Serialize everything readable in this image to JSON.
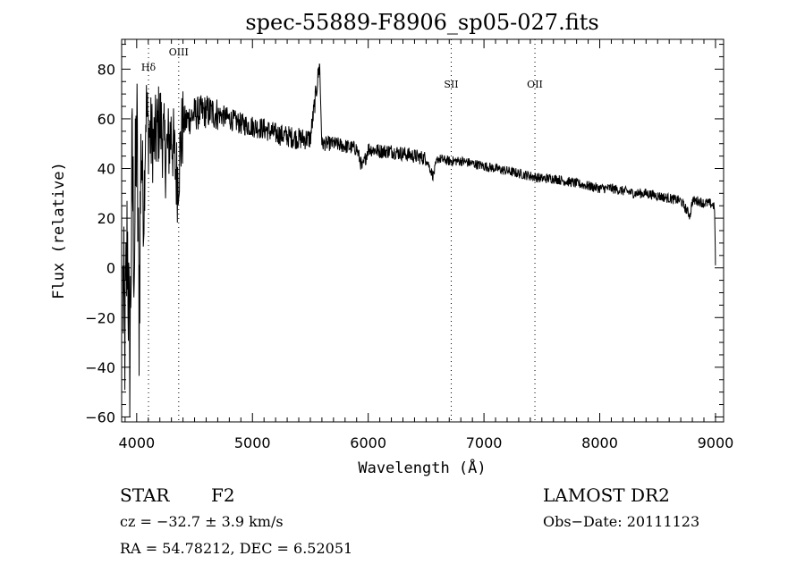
{
  "chart_data": {
    "type": "line",
    "title": "spec-55889-F8906_sp05-027.fits",
    "xlabel": "Wavelength (Å)",
    "ylabel": "Flux (relative)",
    "xlim": [
      3870,
      9070
    ],
    "ylim": [
      -62,
      92
    ],
    "xticks": [
      4000,
      5000,
      6000,
      7000,
      8000,
      9000
    ],
    "yticks": [
      -60,
      -40,
      -20,
      0,
      20,
      40,
      60,
      80
    ],
    "line_marks": [
      {
        "name": "Hδ",
        "x": 4102
      },
      {
        "name": "OIII",
        "x": 4363
      },
      {
        "name": "SII",
        "x": 6717
      },
      {
        "name": "OII",
        "x": 7440
      }
    ],
    "series": [
      {
        "x": [
          3880,
          3900,
          3920,
          3940,
          3960,
          3980,
          4000,
          4020,
          4040,
          4060,
          4080,
          4100,
          4150,
          4200,
          4250,
          4300,
          4350,
          4400,
          4500,
          4600,
          4700,
          4800,
          4900,
          5000,
          5100,
          5200,
          5300,
          5400,
          5500,
          5580,
          5600,
          5700,
          5800,
          5900,
          5950,
          6000,
          6100,
          6200,
          6300,
          6400,
          6500,
          6560,
          6600,
          6700,
          6800,
          6900,
          7000,
          7100,
          7200,
          7300,
          7400,
          7500,
          7600,
          7700,
          7800,
          7900,
          8000,
          8100,
          8200,
          8300,
          8400,
          8500,
          8600,
          8700,
          8780,
          8800,
          8850,
          8900,
          8950,
          8990,
          9000
        ],
        "y": [
          -10,
          -28,
          15,
          -45,
          40,
          5,
          60,
          -20,
          55,
          20,
          65,
          55,
          50,
          60,
          45,
          55,
          35,
          58,
          62,
          63,
          62,
          60,
          58,
          57,
          56,
          54,
          53,
          52,
          52,
          82,
          50,
          50,
          49,
          48,
          40,
          48,
          47,
          47,
          46,
          45,
          44,
          37,
          44,
          43,
          43,
          42,
          41,
          40,
          39,
          38,
          37,
          36,
          36,
          35,
          34,
          33,
          32,
          32,
          31,
          30,
          30,
          29,
          28,
          27,
          21,
          27,
          27,
          26,
          26,
          25,
          5
        ]
      }
    ]
  },
  "footer": {
    "object_class": "STAR",
    "subclass": "F2",
    "survey": "LAMOST DR2",
    "cz": "cz = −32.7 ± 3.9 km/s",
    "obs_date": "Obs−Date: 20111123",
    "coords": "RA =  54.78212, DEC =    6.52051"
  }
}
